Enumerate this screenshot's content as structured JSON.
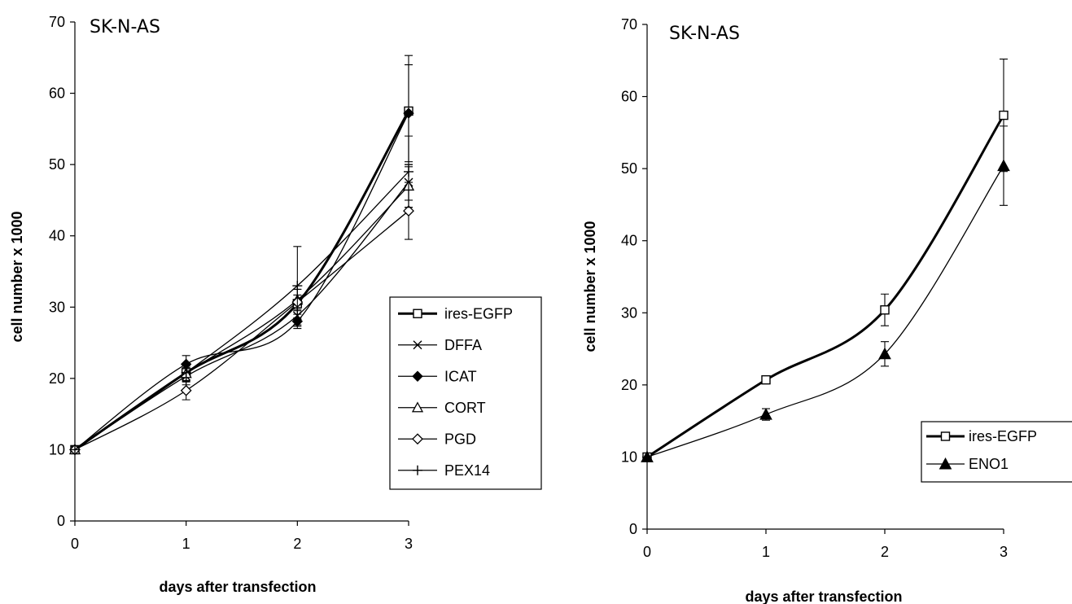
{
  "chart_data": [
    {
      "type": "line",
      "title": "SK-N-AS",
      "xlabel": "days after transfection",
      "ylabel": "cell number x 1000",
      "x": [
        0,
        1,
        2,
        3
      ],
      "x_ticks": [
        "0",
        "1",
        "2",
        "3"
      ],
      "y_ticks": [
        "0",
        "10",
        "20",
        "30",
        "40",
        "50",
        "60",
        "70"
      ],
      "xlim": [
        0,
        3
      ],
      "ylim": [
        0,
        70
      ],
      "grid": false,
      "legend_position": "right",
      "series": [
        {
          "name": "ires-EGFP",
          "marker": "open-square",
          "values": [
            10,
            20.8,
            30.5,
            57.5
          ],
          "errors": [
            0,
            0.5,
            2,
            7.8
          ]
        },
        {
          "name": "DFFA",
          "marker": "x",
          "values": [
            10,
            20.3,
            28.8,
            47.5
          ],
          "errors": [
            0,
            1.2,
            1.5,
            2.5
          ]
        },
        {
          "name": "ICAT",
          "marker": "filled-diamond",
          "values": [
            10,
            22,
            28,
            57.2
          ],
          "errors": [
            0,
            1.2,
            1,
            6.8
          ]
        },
        {
          "name": "CORT",
          "marker": "open-triangle",
          "values": [
            10,
            20.7,
            31,
            47
          ],
          "errors": [
            0,
            1,
            1.5,
            3
          ]
        },
        {
          "name": "PGD",
          "marker": "open-diamond",
          "values": [
            10,
            18.3,
            30.7,
            43.5
          ],
          "errors": [
            0,
            1.3,
            1,
            4
          ]
        },
        {
          "name": "PEX14",
          "marker": "plus",
          "values": [
            10,
            20.8,
            33,
            49
          ],
          "errors": [
            0,
            1.3,
            5.5,
            5
          ]
        }
      ]
    },
    {
      "type": "line",
      "title": "SK-N-AS",
      "xlabel": "days after transfection",
      "ylabel": "cell number x 1000",
      "x": [
        0,
        1,
        2,
        3
      ],
      "x_ticks": [
        "0",
        "1",
        "2",
        "3"
      ],
      "y_ticks": [
        "0",
        "10",
        "20",
        "30",
        "40",
        "50",
        "60",
        "70"
      ],
      "xlim": [
        0,
        3
      ],
      "ylim": [
        0,
        70
      ],
      "grid": false,
      "legend_position": "right",
      "series": [
        {
          "name": "ires-EGFP",
          "marker": "open-square",
          "values": [
            10,
            20.7,
            30.4,
            57.4
          ],
          "errors": [
            0,
            0.5,
            2.2,
            7.8
          ]
        },
        {
          "name": "ENO1",
          "marker": "filled-triangle",
          "values": [
            10,
            15.9,
            24.3,
            50.4
          ],
          "errors": [
            0,
            0.8,
            1.7,
            5.5
          ]
        }
      ]
    }
  ]
}
